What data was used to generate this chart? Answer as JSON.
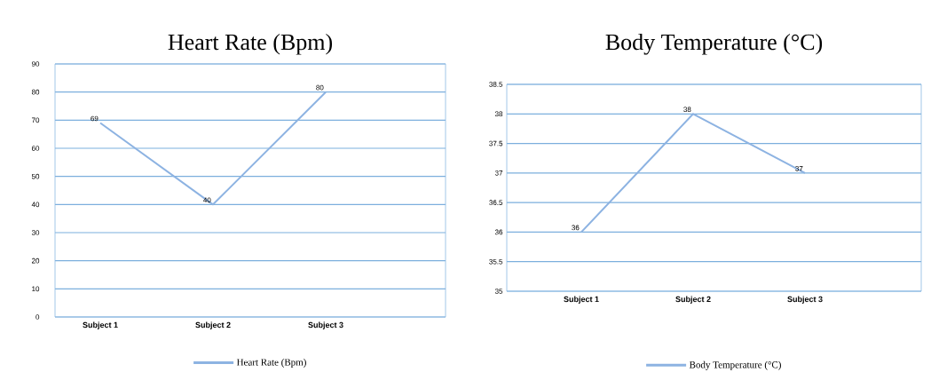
{
  "chart_data": [
    {
      "type": "line",
      "title": "Heart Rate (Bpm)",
      "categories": [
        "Subject 1",
        "Subject 2",
        "Subject 3"
      ],
      "series": [
        {
          "name": "Heart Rate (Bpm)",
          "color": "#8db3e2",
          "values": [
            69,
            40,
            80
          ]
        }
      ],
      "ylim": [
        0,
        90
      ],
      "yticks": [
        0,
        10,
        20,
        30,
        40,
        50,
        60,
        70,
        80,
        90
      ],
      "grid": "y",
      "legend": "bottom",
      "data_labels": true,
      "marker": "none"
    },
    {
      "type": "line",
      "title": "Body Temperature (°C)",
      "categories": [
        "Subject 1",
        "Subject 2",
        "Subject 3"
      ],
      "series": [
        {
          "name": "Body Temperature (°C)",
          "color": "#8db3e2",
          "values": [
            36,
            38,
            37
          ]
        }
      ],
      "ylim": [
        35,
        38.5
      ],
      "yticks": [
        35,
        35.5,
        36,
        36.5,
        37,
        37.5,
        38,
        38.5
      ],
      "grid": "y",
      "legend": "bottom",
      "data_labels": true,
      "marker": "none"
    }
  ]
}
